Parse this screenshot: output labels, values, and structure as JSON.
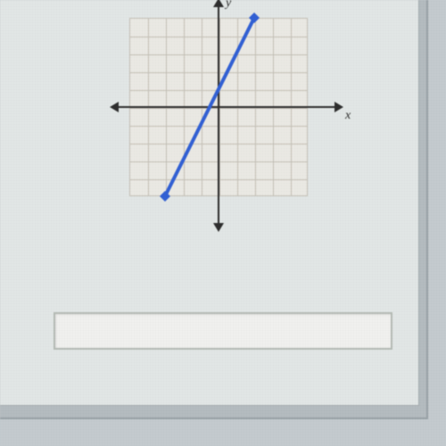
{
  "graph": {
    "type": "line",
    "title": "",
    "background_color": "#f2f0ea",
    "grid_color": "#c8c4ba",
    "axis_color": "#2a2a2a",
    "line_color": "#2e5fd9",
    "line_width": 4,
    "xlabel": "x",
    "ylabel": "y",
    "label_fontsize": 14,
    "xlim": [
      -5,
      5
    ],
    "ylim": [
      -5,
      5
    ],
    "xtick_step": 1,
    "ytick_step": 1,
    "grid_divisions": 10,
    "line_points": [
      {
        "x": -3,
        "y": -5
      },
      {
        "x": 2,
        "y": 5
      }
    ],
    "endpoint_marker": "diamond",
    "endpoint_marker_size": 6
  },
  "answer_input": {
    "value": "",
    "placeholder": ""
  },
  "panel": {
    "outer_bg": "#c5ccd0",
    "frame_bg": "#b8bfc3",
    "inner_bg": "#e8edec",
    "answer_bg": "#f8f8f6",
    "answer_border": "#b8beb8"
  }
}
